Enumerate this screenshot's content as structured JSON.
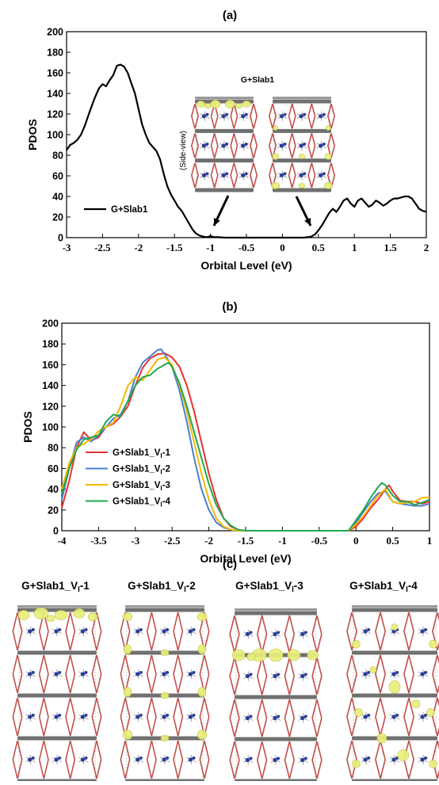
{
  "panels": {
    "a": "(a)",
    "b": "(b)",
    "c": "(c)"
  },
  "chart_data": [
    {
      "type": "line",
      "panel": "(a)",
      "xlabel": "Orbital Level (eV)",
      "ylabel": "PDOS",
      "xlim": [
        -3,
        2
      ],
      "ylim": [
        0,
        200
      ],
      "xticks": [
        -3,
        -2.5,
        -2,
        -1.5,
        -1,
        -0.5,
        0,
        0.5,
        1,
        1.5,
        2
      ],
      "yticks": [
        0,
        20,
        40,
        60,
        80,
        100,
        120,
        140,
        160,
        180,
        200
      ],
      "grid": false,
      "legend": "left",
      "inset_title": "G+Slab1",
      "inset_label": "(Side-view)",
      "series": [
        {
          "name": "G+Slab1",
          "color": "#000000",
          "x": [
            -3.0,
            -2.95,
            -2.9,
            -2.85,
            -2.8,
            -2.75,
            -2.7,
            -2.65,
            -2.6,
            -2.55,
            -2.5,
            -2.45,
            -2.4,
            -2.35,
            -2.3,
            -2.25,
            -2.2,
            -2.15,
            -2.1,
            -2.05,
            -2.0,
            -1.95,
            -1.9,
            -1.85,
            -1.8,
            -1.75,
            -1.7,
            -1.65,
            -1.6,
            -1.55,
            -1.5,
            -1.45,
            -1.4,
            -1.35,
            -1.3,
            -1.25,
            -1.2,
            -1.15,
            -1.1,
            -1.05,
            -1.0,
            -0.95,
            -0.9,
            -0.8,
            -0.6,
            -0.4,
            -0.2,
            0.0,
            0.2,
            0.3,
            0.35,
            0.4,
            0.45,
            0.5,
            0.55,
            0.6,
            0.65,
            0.7,
            0.75,
            0.8,
            0.85,
            0.9,
            0.95,
            1.0,
            1.05,
            1.1,
            1.15,
            1.2,
            1.25,
            1.3,
            1.35,
            1.4,
            1.45,
            1.5,
            1.55,
            1.6,
            1.65,
            1.7,
            1.75,
            1.8,
            1.85,
            1.9,
            1.95,
            2.0
          ],
          "y": [
            85,
            90,
            92,
            95,
            100,
            108,
            118,
            128,
            137,
            145,
            149,
            147,
            153,
            158,
            167,
            168,
            166,
            160,
            150,
            140,
            125,
            110,
            100,
            92,
            88,
            84,
            76,
            62,
            50,
            42,
            36,
            30,
            26,
            20,
            14,
            8,
            4,
            2,
            1,
            0.5,
            1.5,
            0.5,
            0.5,
            0,
            0,
            0,
            0,
            0,
            0,
            0,
            0.5,
            1,
            3,
            7,
            12,
            18,
            24,
            28,
            25,
            30,
            36,
            38,
            33,
            30,
            36,
            38,
            34,
            30,
            32,
            36,
            34,
            31,
            33,
            36,
            38,
            38,
            39,
            40,
            40,
            38,
            33,
            28,
            26,
            25
          ]
        }
      ]
    },
    {
      "type": "line",
      "panel": "(b)",
      "xlabel": "Orbital Level (eV)",
      "ylabel": "PDOS",
      "xlim": [
        -4,
        1
      ],
      "ylim": [
        0,
        200
      ],
      "xticks": [
        -4,
        -3.5,
        -3,
        -2.5,
        -2,
        -1.5,
        -1,
        -0.5,
        0,
        0.5,
        1
      ],
      "yticks": [
        0,
        20,
        40,
        60,
        80,
        100,
        120,
        140,
        160,
        180,
        200
      ],
      "grid": false,
      "legend": "left",
      "series": [
        {
          "name": "G+Slab1_VI-1",
          "color": "#e8312f",
          "x": [
            -4.0,
            -3.9,
            -3.8,
            -3.7,
            -3.6,
            -3.5,
            -3.4,
            -3.3,
            -3.2,
            -3.1,
            -3.0,
            -2.9,
            -2.8,
            -2.7,
            -2.6,
            -2.5,
            -2.4,
            -2.3,
            -2.2,
            -2.1,
            -2.0,
            -1.9,
            -1.8,
            -1.7,
            -1.6,
            -1.55,
            -1.5,
            -1.0,
            -0.5,
            -0.1,
            0.0,
            0.1,
            0.2,
            0.3,
            0.4,
            0.45,
            0.5,
            0.6,
            0.7,
            0.8,
            0.9,
            1.0
          ],
          "y": [
            22,
            48,
            80,
            95,
            87,
            90,
            100,
            103,
            110,
            120,
            140,
            157,
            166,
            170,
            171,
            167,
            158,
            140,
            115,
            85,
            55,
            30,
            12,
            4,
            1,
            0,
            0,
            0,
            0,
            0,
            4,
            12,
            22,
            30,
            40,
            44,
            38,
            29,
            28,
            28,
            26,
            28
          ]
        },
        {
          "name": "G+Slab1_VI-2",
          "color": "#4a7fcf",
          "x": [
            -4.0,
            -3.9,
            -3.8,
            -3.7,
            -3.6,
            -3.5,
            -3.4,
            -3.3,
            -3.2,
            -3.1,
            -3.0,
            -2.9,
            -2.8,
            -2.7,
            -2.65,
            -2.6,
            -2.5,
            -2.4,
            -2.3,
            -2.2,
            -2.1,
            -2.0,
            -1.9,
            -1.8,
            -1.7,
            -1.65,
            -1.6,
            -1.0,
            -0.5,
            -0.1,
            0.0,
            0.1,
            0.2,
            0.3,
            0.4,
            0.5,
            0.6,
            0.7,
            0.8,
            0.9,
            1.0
          ],
          "y": [
            30,
            60,
            85,
            90,
            86,
            92,
            100,
            108,
            112,
            125,
            148,
            162,
            168,
            174,
            175,
            170,
            158,
            135,
            105,
            70,
            40,
            20,
            8,
            3,
            1,
            0,
            0,
            0,
            0,
            0,
            8,
            18,
            28,
            36,
            38,
            28,
            26,
            25,
            24,
            24,
            26
          ]
        },
        {
          "name": "G+Slab1_VI-3",
          "color": "#f5b800",
          "x": [
            -4.0,
            -3.9,
            -3.8,
            -3.7,
            -3.6,
            -3.5,
            -3.4,
            -3.3,
            -3.2,
            -3.1,
            -3.0,
            -2.9,
            -2.8,
            -2.7,
            -2.6,
            -2.5,
            -2.4,
            -2.3,
            -2.2,
            -2.1,
            -2.0,
            -1.9,
            -1.8,
            -1.7,
            -1.6,
            -1.0,
            -0.5,
            -0.1,
            0.0,
            0.1,
            0.2,
            0.3,
            0.4,
            0.5,
            0.6,
            0.7,
            0.8,
            0.9,
            1.0
          ],
          "y": [
            40,
            65,
            80,
            84,
            88,
            96,
            100,
            104,
            120,
            140,
            148,
            145,
            155,
            165,
            167,
            160,
            140,
            115,
            85,
            55,
            30,
            12,
            4,
            1,
            0,
            0,
            0,
            0,
            6,
            14,
            24,
            34,
            40,
            28,
            26,
            27,
            28,
            32,
            32
          ]
        },
        {
          "name": "G+Slab1_VI-4",
          "color": "#1fa84f",
          "x": [
            -4.0,
            -3.9,
            -3.8,
            -3.7,
            -3.6,
            -3.5,
            -3.4,
            -3.3,
            -3.2,
            -3.1,
            -3.0,
            -2.9,
            -2.8,
            -2.7,
            -2.6,
            -2.55,
            -2.5,
            -2.4,
            -2.3,
            -2.2,
            -2.1,
            -2.0,
            -1.9,
            -1.8,
            -1.7,
            -1.6,
            -1.5,
            -1.0,
            -0.5,
            -0.1,
            0.0,
            0.1,
            0.2,
            0.3,
            0.35,
            0.4,
            0.5,
            0.6,
            0.7,
            0.8,
            0.9,
            1.0
          ],
          "y": [
            35,
            60,
            78,
            88,
            90,
            92,
            105,
            112,
            110,
            125,
            140,
            148,
            150,
            156,
            160,
            162,
            158,
            142,
            120,
            95,
            70,
            45,
            25,
            12,
            5,
            1,
            0,
            0,
            0,
            0,
            10,
            20,
            32,
            42,
            46,
            44,
            34,
            28,
            28,
            25,
            27,
            30
          ]
        }
      ]
    }
  ],
  "structures": {
    "titles": [
      "G+Slab1_VI-1",
      "G+Slab1_VI-2",
      "G+Slab1_VI-3",
      "G+Slab1_VI-4"
    ]
  },
  "colors": {
    "frame": "#8c8c8c",
    "bond_red": "#c0504d",
    "isosurface": "#e9ef7a",
    "molecule_blue": "#2b3d9a"
  }
}
